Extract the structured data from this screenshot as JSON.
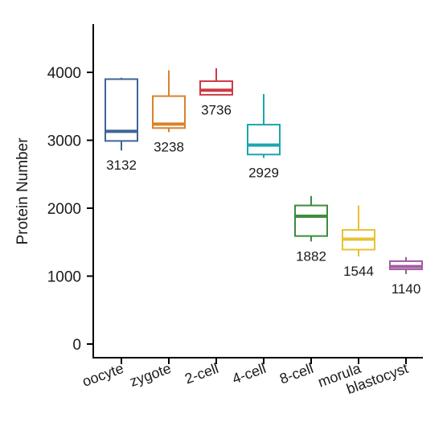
{
  "chart_data": {
    "type": "box",
    "title": "",
    "xlabel": "",
    "ylabel": "Protein Number",
    "ylim": [
      0,
      4600
    ],
    "yticks": [
      0,
      1000,
      2000,
      3000,
      4000
    ],
    "grid": false,
    "categories": [
      "oocyte",
      "zygote",
      "2-cell",
      "4-cell",
      "8-cell",
      "morula",
      "blastocyst"
    ],
    "boxes": [
      {
        "category": "oocyte",
        "color": "#3f6497",
        "whisker_low": 2850,
        "q1": 2990,
        "median": 3132,
        "q3": 3900,
        "whisker_high": 3920,
        "label": "3132"
      },
      {
        "category": "zygote",
        "color": "#d9822b",
        "whisker_low": 3120,
        "q1": 3180,
        "median": 3238,
        "q3": 3650,
        "whisker_high": 4030,
        "label": "3238"
      },
      {
        "category": "2-cell",
        "color": "#cc3b46",
        "whisker_low": 3660,
        "q1": 3670,
        "median": 3736,
        "q3": 3870,
        "whisker_high": 4060,
        "label": "3736"
      },
      {
        "category": "4-cell",
        "color": "#1ba6ad",
        "whisker_low": 2740,
        "q1": 2790,
        "median": 2929,
        "q3": 3230,
        "whisker_high": 3680,
        "label": "2929"
      },
      {
        "category": "8-cell",
        "color": "#3d8c3d",
        "whisker_low": 1510,
        "q1": 1590,
        "median": 1882,
        "q3": 2040,
        "whisker_high": 2180,
        "label": "1882"
      },
      {
        "category": "morula",
        "color": "#e6c233",
        "whisker_low": 1290,
        "q1": 1390,
        "median": 1544,
        "q3": 1680,
        "whisker_high": 2040,
        "label": "1544"
      },
      {
        "category": "blastocyst",
        "color": "#a15ca2",
        "whisker_low": 1030,
        "q1": 1100,
        "median": 1140,
        "q3": 1220,
        "whisker_high": 1280,
        "label": "1140"
      }
    ]
  }
}
